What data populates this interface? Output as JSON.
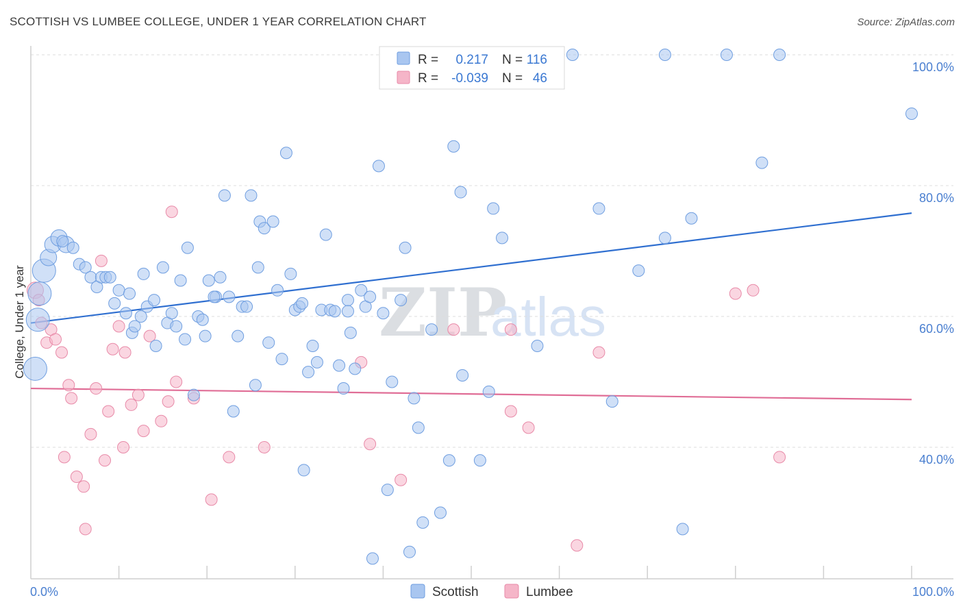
{
  "header": {
    "title": "SCOTTISH VS LUMBEE COLLEGE, UNDER 1 YEAR CORRELATION CHART",
    "source": "Source: ZipAtlas.com"
  },
  "watermark": {
    "part1": "ZIP",
    "part2": "atlas"
  },
  "legend_box": {
    "rows": [
      {
        "r_label": "R =",
        "r_value": "0.217",
        "n_label": "N =",
        "n_value": "116",
        "color": "#a9c6f0"
      },
      {
        "r_label": "R =",
        "r_value": "-0.039",
        "n_label": "N =",
        "n_value": "46",
        "color": "#f5b5c8"
      }
    ]
  },
  "bottom_legend": [
    {
      "label": "Scottish",
      "color": "#a9c6f0"
    },
    {
      "label": "Lumbee",
      "color": "#f5b5c8"
    }
  ],
  "colors": {
    "scottish_fill": "#a9c6f0",
    "scottish_stroke": "#6f9ee0",
    "scottish_line": "#2f6fd0",
    "lumbee_fill": "#f5b5c8",
    "lumbee_stroke": "#e88aa8",
    "lumbee_line": "#e06d96",
    "tick_text": "#4a7fd0"
  },
  "chart_data": {
    "type": "scatter",
    "title": "SCOTTISH VS LUMBEE COLLEGE, UNDER 1 YEAR CORRELATION CHART",
    "xlabel": "",
    "ylabel": "College, Under 1 year",
    "xlim": [
      0,
      100
    ],
    "ylim": [
      20,
      102
    ],
    "x_ticks": [
      {
        "value": 0,
        "label": "0.0%"
      },
      {
        "value": 100,
        "label": "100.0%"
      }
    ],
    "y_ticks": [
      {
        "value": 100,
        "label": "100.0%"
      },
      {
        "value": 80,
        "label": "80.0%"
      },
      {
        "value": 60,
        "label": "60.0%"
      },
      {
        "value": 40,
        "label": "40.0%"
      }
    ],
    "x_minor_ticks": [
      10,
      20,
      30,
      40,
      50,
      60,
      70,
      80,
      90,
      100
    ],
    "grid": true,
    "series": [
      {
        "name": "Scottish",
        "r": 0.217,
        "n": 116,
        "trend": {
          "x": [
            0,
            100
          ],
          "y": [
            59.0,
            75.8
          ]
        },
        "points": [
          [
            0.5,
            52,
            3
          ],
          [
            0.8,
            59.5,
            3
          ],
          [
            1.0,
            63.5,
            3
          ],
          [
            1.5,
            67,
            3
          ],
          [
            2.0,
            69,
            2
          ],
          [
            2.5,
            71,
            2
          ],
          [
            3.2,
            72,
            2
          ],
          [
            4.0,
            71,
            2
          ],
          [
            3.6,
            71.5,
            1
          ],
          [
            4.8,
            70.5,
            1
          ],
          [
            5.5,
            68,
            1
          ],
          [
            6.2,
            67.5,
            1
          ],
          [
            6.8,
            66,
            1
          ],
          [
            7.5,
            64.5,
            1
          ],
          [
            8.0,
            66,
            1
          ],
          [
            8.5,
            66,
            1
          ],
          [
            9.5,
            62,
            1
          ],
          [
            10.0,
            64,
            1
          ],
          [
            10.8,
            60.5,
            1
          ],
          [
            11.2,
            63.5,
            1
          ],
          [
            11.5,
            57.5,
            1
          ],
          [
            11.8,
            58.5,
            1
          ],
          [
            12.5,
            60,
            1
          ],
          [
            12.8,
            66.5,
            1
          ],
          [
            13.2,
            61.5,
            1
          ],
          [
            14.0,
            62.5,
            1
          ],
          [
            14.2,
            55.5,
            1
          ],
          [
            15.0,
            67.5,
            1
          ],
          [
            15.5,
            59,
            1
          ],
          [
            16.0,
            60.5,
            1
          ],
          [
            16.5,
            58.5,
            1
          ],
          [
            17.0,
            65.5,
            1
          ],
          [
            17.5,
            56.5,
            1
          ],
          [
            17.8,
            70.5,
            1
          ],
          [
            18.5,
            48,
            1
          ],
          [
            19.0,
            60,
            1
          ],
          [
            19.5,
            59.5,
            1
          ],
          [
            19.8,
            57,
            1
          ],
          [
            20.2,
            65.5,
            1
          ],
          [
            21.0,
            63,
            1
          ],
          [
            21.5,
            66,
            1
          ],
          [
            22.0,
            78.5,
            1
          ],
          [
            22.5,
            63,
            1
          ],
          [
            23.0,
            45.5,
            1
          ],
          [
            23.5,
            57,
            1
          ],
          [
            24.0,
            61.5,
            1
          ],
          [
            24.5,
            61.5,
            1
          ],
          [
            25.0,
            78.5,
            1
          ],
          [
            25.5,
            49.5,
            1
          ],
          [
            25.8,
            67.5,
            1
          ],
          [
            26.0,
            74.5,
            1
          ],
          [
            26.5,
            73.5,
            1
          ],
          [
            27.0,
            56,
            1
          ],
          [
            27.5,
            74.5,
            1
          ],
          [
            28.0,
            64,
            1
          ],
          [
            28.5,
            53.5,
            1
          ],
          [
            29.0,
            85,
            1
          ],
          [
            29.5,
            66.5,
            1
          ],
          [
            30.0,
            61,
            1
          ],
          [
            30.5,
            61.5,
            1
          ],
          [
            31.0,
            36.5,
            1
          ],
          [
            31.5,
            51.5,
            1
          ],
          [
            32.0,
            55.5,
            1
          ],
          [
            32.5,
            53,
            1
          ],
          [
            33.0,
            61,
            1
          ],
          [
            33.5,
            72.5,
            1
          ],
          [
            34.0,
            61,
            1
          ],
          [
            35.0,
            52.5,
            1
          ],
          [
            35.5,
            49,
            1
          ],
          [
            36.0,
            62.5,
            1
          ],
          [
            36.3,
            57.5,
            1
          ],
          [
            36.8,
            52,
            1
          ],
          [
            37.5,
            64,
            1
          ],
          [
            38.0,
            61.5,
            1
          ],
          [
            38.5,
            63,
            1
          ],
          [
            38.8,
            23,
            1
          ],
          [
            39.5,
            83,
            1
          ],
          [
            40.5,
            33.5,
            1
          ],
          [
            41.0,
            50,
            1
          ],
          [
            42.0,
            62.5,
            1
          ],
          [
            42.5,
            70.5,
            1
          ],
          [
            43.0,
            24,
            1
          ],
          [
            43.5,
            47.5,
            1
          ],
          [
            44.0,
            43,
            1
          ],
          [
            44.5,
            28.5,
            1
          ],
          [
            45.5,
            58,
            1
          ],
          [
            46.5,
            30,
            1
          ],
          [
            47.5,
            38,
            1
          ],
          [
            48.0,
            86,
            1
          ],
          [
            48.8,
            79,
            1
          ],
          [
            49.0,
            51,
            1
          ],
          [
            51.0,
            38,
            1
          ],
          [
            52.0,
            48.5,
            1
          ],
          [
            52.5,
            76.5,
            1
          ],
          [
            53.5,
            72,
            1
          ],
          [
            54.5,
            100,
            1
          ],
          [
            55.0,
            100,
            1
          ],
          [
            57.5,
            55.5,
            1
          ],
          [
            61.5,
            100,
            1
          ],
          [
            64.5,
            76.5,
            1
          ],
          [
            66.0,
            47,
            1
          ],
          [
            69.0,
            67,
            1
          ],
          [
            72.0,
            100,
            1
          ],
          [
            72.0,
            72,
            1
          ],
          [
            74.0,
            27.5,
            1
          ],
          [
            75.0,
            75,
            1
          ],
          [
            79.0,
            100,
            1
          ],
          [
            83.0,
            83.5,
            1
          ],
          [
            85.0,
            100,
            1
          ],
          [
            100.0,
            91,
            1
          ],
          [
            40.0,
            60.5,
            1
          ],
          [
            36.0,
            60.8,
            1
          ],
          [
            9.0,
            66.0,
            1
          ],
          [
            20.8,
            63.0,
            1
          ],
          [
            30.8,
            62.0,
            1
          ],
          [
            34.5,
            60.8,
            1
          ]
        ]
      },
      {
        "name": "Lumbee",
        "r": -0.039,
        "n": 46,
        "trend": {
          "x": [
            0,
            100
          ],
          "y": [
            49.0,
            47.3
          ]
        },
        "points": [
          [
            0.5,
            64,
            2
          ],
          [
            0.9,
            62.5,
            1
          ],
          [
            1.2,
            59,
            1
          ],
          [
            1.8,
            56,
            1
          ],
          [
            2.3,
            58,
            1
          ],
          [
            2.8,
            56.5,
            1
          ],
          [
            3.5,
            54.5,
            1
          ],
          [
            3.8,
            38.5,
            1
          ],
          [
            4.3,
            49.5,
            1
          ],
          [
            4.6,
            47.5,
            1
          ],
          [
            5.2,
            35.5,
            1
          ],
          [
            6.0,
            34,
            1
          ],
          [
            6.2,
            27.5,
            1
          ],
          [
            6.8,
            42,
            1
          ],
          [
            7.4,
            49,
            1
          ],
          [
            8.0,
            68.5,
            1
          ],
          [
            8.4,
            38,
            1
          ],
          [
            8.8,
            45.5,
            1
          ],
          [
            9.3,
            55,
            1
          ],
          [
            10.0,
            58.5,
            1
          ],
          [
            10.5,
            40,
            1
          ],
          [
            10.7,
            54.5,
            1
          ],
          [
            11.4,
            46.5,
            1
          ],
          [
            12.2,
            48,
            1
          ],
          [
            12.8,
            42.5,
            1
          ],
          [
            13.5,
            57,
            1
          ],
          [
            14.8,
            44,
            1
          ],
          [
            15.6,
            47,
            1
          ],
          [
            16.0,
            76,
            1
          ],
          [
            16.5,
            50,
            1
          ],
          [
            18.5,
            47.5,
            1
          ],
          [
            20.5,
            32,
            1
          ],
          [
            22.5,
            38.5,
            1
          ],
          [
            26.5,
            40,
            1
          ],
          [
            37.5,
            53,
            1
          ],
          [
            38.5,
            40.5,
            1
          ],
          [
            42.0,
            35,
            1
          ],
          [
            48.0,
            58,
            1
          ],
          [
            54.5,
            58,
            1
          ],
          [
            54.5,
            45.5,
            1
          ],
          [
            56.5,
            43,
            1
          ],
          [
            62.0,
            25,
            1
          ],
          [
            64.5,
            54.5,
            1
          ],
          [
            80.0,
            63.5,
            1
          ],
          [
            82.0,
            64,
            1
          ],
          [
            85.0,
            38.5,
            1
          ]
        ]
      }
    ]
  }
}
